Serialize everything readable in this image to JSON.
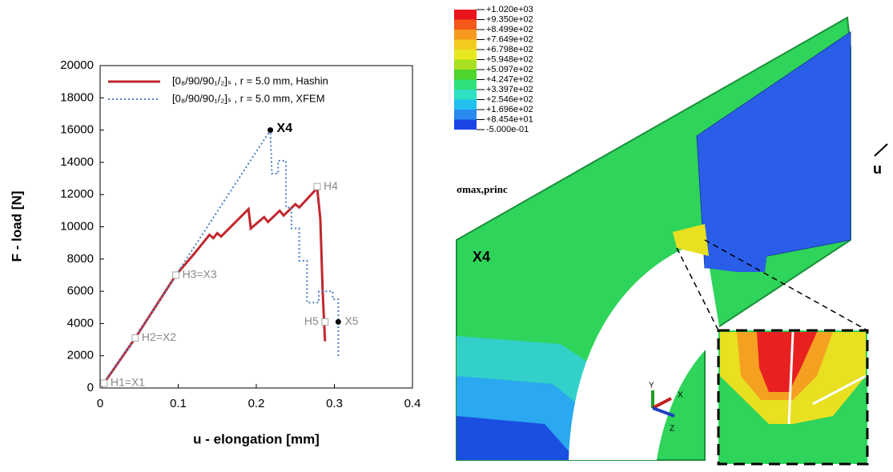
{
  "chart_data": {
    "type": "line",
    "xlabel": "u - elongation [mm]",
    "ylabel": "F - load [N]",
    "xlim": [
      0,
      0.4
    ],
    "xticks": [
      0,
      0.1,
      0.2,
      0.3,
      0.4
    ],
    "ylim": [
      0,
      20000
    ],
    "yticks": [
      0,
      2000,
      4000,
      6000,
      8000,
      10000,
      12000,
      14000,
      16000,
      18000,
      20000
    ],
    "legend": "upper-left",
    "series": [
      {
        "name": "[0₈/90/90₁/₂]ₛ , r = 5.0 mm, Hashin",
        "color": "#c0282d",
        "line_style": "solid",
        "x": [
          0,
          0.005,
          0.045,
          0.097,
          0.12,
          0.14,
          0.145,
          0.15,
          0.155,
          0.19,
          0.193,
          0.21,
          0.215,
          0.23,
          0.235,
          0.25,
          0.255,
          0.278,
          0.282,
          0.285,
          0.288
        ],
        "values": [
          0,
          300,
          3100,
          7000,
          8300,
          9500,
          9300,
          9600,
          9400,
          11100,
          9900,
          10600,
          10300,
          11000,
          10700,
          11400,
          11200,
          12400,
          10500,
          6000,
          2900
        ]
      },
      {
        "name": "[0₈/90/90₁/₂]ₛ , r = 5.0 mm, XFEM",
        "color": "#4a7fc1",
        "line_style": "dotted",
        "x": [
          0,
          0.045,
          0.097,
          0.218,
          0.22,
          0.228,
          0.228,
          0.238,
          0.238,
          0.245,
          0.245,
          0.255,
          0.255,
          0.265,
          0.265,
          0.28,
          0.28,
          0.298,
          0.298,
          0.305,
          0.305
        ],
        "values": [
          0,
          3100,
          7000,
          16000,
          13300,
          13300,
          14100,
          14100,
          11200,
          11200,
          9900,
          9900,
          7900,
          7900,
          5300,
          5300,
          6000,
          6000,
          5500,
          5500,
          1900
        ]
      }
    ],
    "annotations": [
      {
        "text": "H1=X1",
        "x": 0.005,
        "y": 300,
        "color": "#888888"
      },
      {
        "text": "H2=X2",
        "x": 0.045,
        "y": 3100,
        "color": "#888888"
      },
      {
        "text": "H3=X3",
        "x": 0.097,
        "y": 7000,
        "color": "#888888"
      },
      {
        "text": "X4",
        "x": 0.218,
        "y": 16000,
        "color": "#000000"
      },
      {
        "text": "H4",
        "x": 0.278,
        "y": 12500,
        "color": "#888888"
      },
      {
        "text": "H5",
        "x": 0.288,
        "y": 4100,
        "color": "#888888"
      },
      {
        "text": "X5",
        "x": 0.305,
        "y": 4100,
        "color": "#888888"
      }
    ]
  },
  "figure": {
    "colorbar_labels": [
      "+1.020e+03",
      "+9.350e+02",
      "+8.499e+02",
      "+7.649e+02",
      "+6.798e+02",
      "+5.948e+02",
      "+5.097e+02",
      "+4.247e+02",
      "+3.397e+02",
      "+2.546e+02",
      "+1.696e+02",
      "+8.454e+01",
      "-5.000e-01"
    ],
    "colorbar_title": "σmax,princ",
    "model_label": "X4",
    "arrow_label": "u",
    "axis_labels": [
      "Y",
      "X",
      "Z"
    ]
  }
}
